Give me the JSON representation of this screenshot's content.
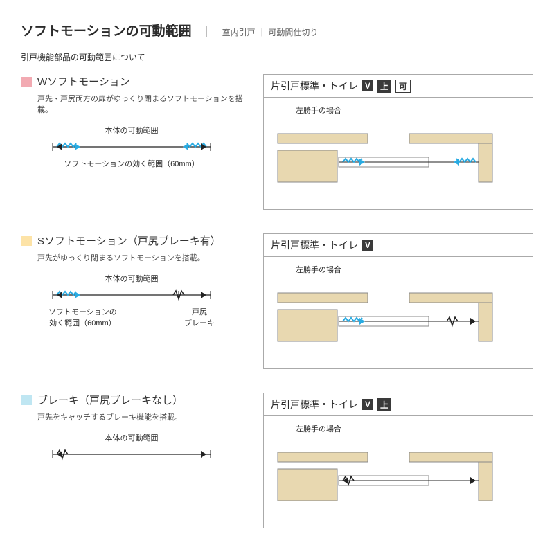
{
  "colors": {
    "accent": "#29abe2",
    "wall": "#e8d8b0",
    "border": "#888888",
    "swatch_w": "#f2aab2",
    "swatch_s": "#fde3a7",
    "swatch_b": "#bfe6f2",
    "badge_bg": "#3a3a3a"
  },
  "header": {
    "title": "ソフトモーションの可動範囲",
    "sep": "｜",
    "sub1": "室内引戸",
    "sub2": "可動間仕切り",
    "subhead": "引戸機能部品の可動範囲について"
  },
  "sections": [
    {
      "swatch": "#f2aab2",
      "title": "Wソフトモーション",
      "desc": "戸先・戸尻両方の扉がゆっくり閉まるソフトモーションを搭載。",
      "range_label": "本体の可動範囲",
      "range_variant": "W",
      "range_sub": "ソフトモーションの効く範囲（60mm）",
      "pane_title": "片引戸標準・トイレ",
      "badges": [
        "V",
        "上",
        "可"
      ],
      "badge_outline_last": true,
      "pane_sub": "左勝手の場合",
      "cross_variant": "W"
    },
    {
      "swatch": "#fde3a7",
      "title": "Sソフトモーション（戸尻ブレーキ有）",
      "desc": "戸先がゆっくり閉まるソフトモーションを搭載。",
      "range_label": "本体の可動範囲",
      "range_variant": "S",
      "range_sub_left_l1": "ソフトモーションの",
      "range_sub_left_l2": "効く範囲（60mm）",
      "range_sub_right_l1": "戸尻",
      "range_sub_right_l2": "ブレーキ",
      "pane_title": "片引戸標準・トイレ",
      "badges": [
        "V"
      ],
      "badge_outline_last": false,
      "pane_sub": "左勝手の場合",
      "cross_variant": "S"
    },
    {
      "swatch": "#bfe6f2",
      "title": "ブレーキ（戸尻ブレーキなし）",
      "desc": "戸先をキャッチするブレーキ機能を搭載。",
      "range_label": "本体の可動範囲",
      "range_variant": "B",
      "pane_title": "片引戸標準・トイレ",
      "badges": [
        "V",
        "上"
      ],
      "badge_outline_last": false,
      "pane_sub": "左勝手の場合",
      "cross_variant": "B"
    }
  ]
}
